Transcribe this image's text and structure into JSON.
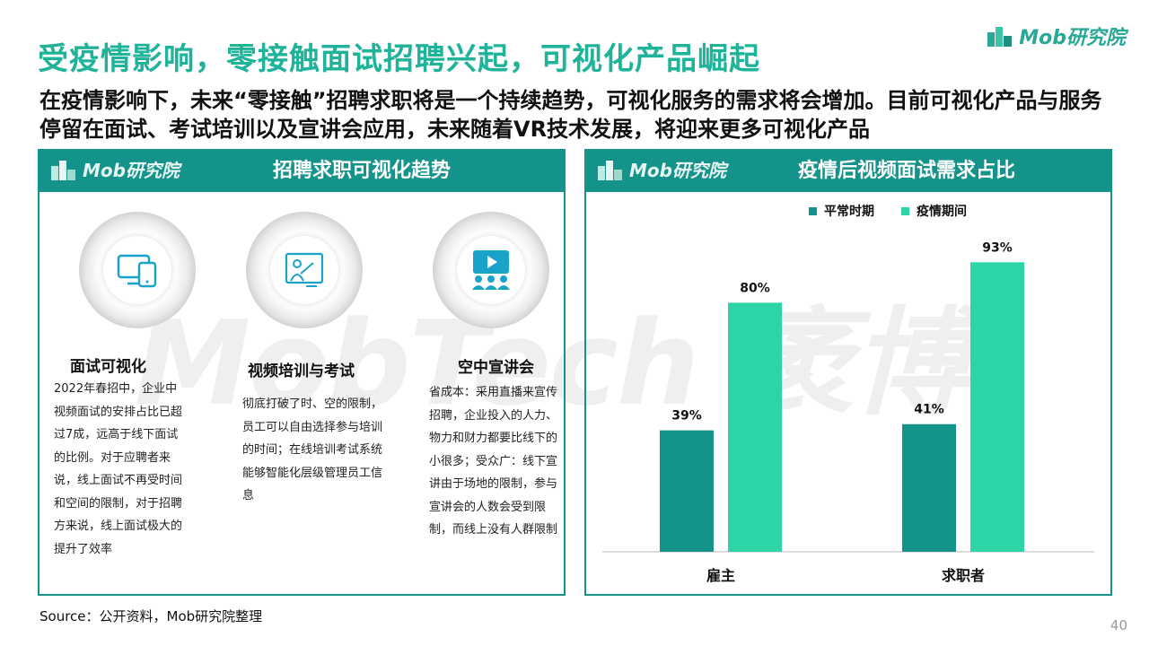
{
  "header": {
    "title": "受疫情影响，零接触面试招聘兴起，可视化产品崛起",
    "logo_text": "Mob研究院",
    "subtitle": "在疫情影响下，未来“零接触”招聘求职将是一个持续趋势，可视化服务的需求将会增加。目前可视化产品与服务停留在面试、考试培训以及宣讲会应用，未来随着VR技术发展，将迎来更多可视化产品"
  },
  "colors": {
    "teal_dark": "#14938a",
    "teal_light": "#2dd4a8",
    "title_green": "#1fb39a",
    "icon_blue": "#1aa3c9"
  },
  "left_panel": {
    "logo_text": "Mob研究院",
    "title": "招聘求职可视化趋势",
    "features": [
      {
        "icon": "devices-icon",
        "title": "面试可视化",
        "desc": "2022年春招中，企业中视频面试的安排占比已超过7成，远高于线下面试的比例。对于应聘者来说，线上面试不再受时间和空间的限制，对于招聘方来说，线上面试极大的提升了效率"
      },
      {
        "icon": "presentation-icon",
        "title": "视频培训与考试",
        "desc": "彻底打破了时、空的限制，员工可以自由选择参与培训的时间；在线培训考试系统能够智能化层级管理员工信息"
      },
      {
        "icon": "audience-video-icon",
        "title": "空中宣讲会",
        "desc": "省成本：采用直播来宣传招聘，企业投入的人力、物力和财力都要比线下的小很多；受众广：线下宣讲由于场地的限制，参与宣讲会的人数会受到限制，而线上没有人群限制"
      }
    ]
  },
  "right_panel": {
    "logo_text": "Mob研究院",
    "title": "疫情后视频面试需求占比"
  },
  "watermark": "MobTech 袤博",
  "chart_data": {
    "type": "bar",
    "title": "疫情后视频面试需求占比",
    "categories": [
      "雇主",
      "求职者"
    ],
    "series": [
      {
        "name": "平常时期",
        "values": [
          39,
          41
        ],
        "color": "#14938a"
      },
      {
        "name": "疫情期间",
        "values": [
          80,
          93
        ],
        "color": "#2dd4a8"
      }
    ],
    "data_labels": [
      [
        "39%",
        "41%"
      ],
      [
        "80%",
        "93%"
      ]
    ],
    "unit": "%",
    "ylim": [
      0,
      100
    ],
    "grid": false,
    "legend_position": "top"
  },
  "footer": {
    "source": "Source：公开资料，Mob研究院整理",
    "page_number": "40"
  }
}
